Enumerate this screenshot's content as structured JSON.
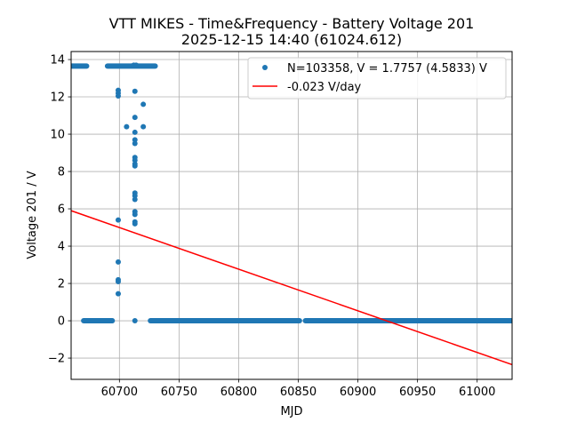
{
  "chart_data": {
    "type": "scatter",
    "title": "VTT MIKES - Time&Frequency - Battery Voltage 201",
    "subtitle": "2025-12-15 14:40 (61024.612)",
    "xlabel": "MJD",
    "ylabel": "Voltage 201 / V",
    "xlim": [
      60659.5,
      61029.3
    ],
    "ylim": [
      -3.14,
      14.43
    ],
    "xticks": [
      60700,
      60750,
      60800,
      60850,
      60900,
      60950,
      61000
    ],
    "xtick_labels": [
      "60700",
      "60750",
      "60800",
      "60850",
      "60900",
      "60950",
      "61000"
    ],
    "yticks": [
      -2,
      0,
      2,
      4,
      6,
      8,
      10,
      12,
      14
    ],
    "ytick_labels": [
      "−2",
      "0",
      "2",
      "4",
      "6",
      "8",
      "10",
      "12",
      "14"
    ],
    "grid": true,
    "legend_position": "top-right",
    "series": [
      {
        "name": "N=103358, V = 1.7757 (4.5833) V",
        "kind": "scatter",
        "color": "#1f77b4",
        "dense_segments": [
          {
            "x_start": 60659.5,
            "x_end": 60672.5,
            "y": 13.65
          },
          {
            "x_start": 60690,
            "x_end": 60730,
            "y": 13.65
          },
          {
            "x_start": 60670,
            "x_end": 60694,
            "y": 0
          },
          {
            "x_start": 60726,
            "x_end": 60851,
            "y": 0
          },
          {
            "x_start": 60856,
            "x_end": 61029.3,
            "y": 0
          }
        ],
        "points": [
          [
            60699,
            12.35
          ],
          [
            60699,
            12.2
          ],
          [
            60699,
            12.05
          ],
          [
            60699,
            5.4
          ],
          [
            60699,
            3.15
          ],
          [
            60699,
            2.2
          ],
          [
            60699,
            2.1
          ],
          [
            60699,
            1.45
          ],
          [
            60713,
            12.3
          ],
          [
            60713,
            10.9
          ],
          [
            60713,
            10.1
          ],
          [
            60713,
            9.7
          ],
          [
            60713,
            9.5
          ],
          [
            60713,
            8.75
          ],
          [
            60713,
            8.6
          ],
          [
            60713,
            8.4
          ],
          [
            60713,
            8.3
          ],
          [
            60713,
            6.85
          ],
          [
            60713,
            6.7
          ],
          [
            60713,
            6.5
          ],
          [
            60713,
            5.85
          ],
          [
            60713,
            5.7
          ],
          [
            60713,
            5.3
          ],
          [
            60713,
            5.2
          ],
          [
            60713,
            0
          ],
          [
            60706,
            10.4
          ],
          [
            60720,
            10.4
          ],
          [
            60720,
            11.6
          ],
          [
            60712,
            13.7
          ],
          [
            60714,
            13.7
          ]
        ]
      },
      {
        "name": "-0.023 V/day",
        "kind": "line",
        "color": "#ff0000",
        "x": [
          60659.5,
          61029.3
        ],
        "y": [
          5.9,
          -2.35
        ]
      }
    ]
  }
}
